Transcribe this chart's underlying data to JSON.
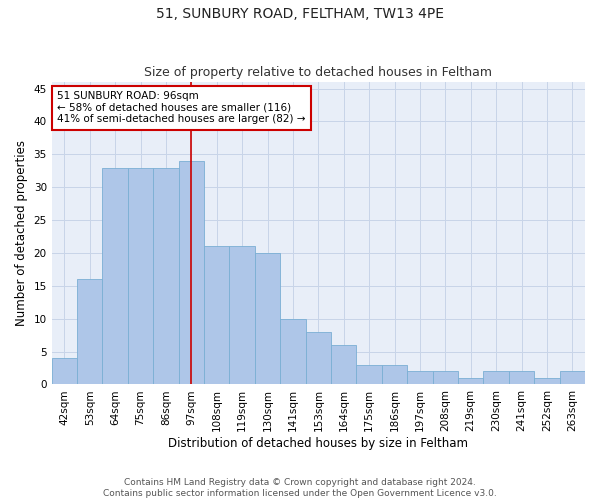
{
  "title": "51, SUNBURY ROAD, FELTHAM, TW13 4PE",
  "subtitle": "Size of property relative to detached houses in Feltham",
  "xlabel": "Distribution of detached houses by size in Feltham",
  "ylabel": "Number of detached properties",
  "categories": [
    "42sqm",
    "53sqm",
    "64sqm",
    "75sqm",
    "86sqm",
    "97sqm",
    "108sqm",
    "119sqm",
    "130sqm",
    "141sqm",
    "153sqm",
    "164sqm",
    "175sqm",
    "186sqm",
    "197sqm",
    "208sqm",
    "219sqm",
    "230sqm",
    "241sqm",
    "252sqm",
    "263sqm"
  ],
  "values": [
    4,
    16,
    33,
    33,
    33,
    34,
    21,
    21,
    20,
    10,
    8,
    6,
    3,
    3,
    2,
    2,
    1,
    2,
    2,
    1,
    2
  ],
  "bar_color": "#aec6e8",
  "bar_edge_color": "#7aafd4",
  "bar_linewidth": 0.6,
  "vline_x_index": 5,
  "vline_color": "#cc0000",
  "annotation_text": "51 SUNBURY ROAD: 96sqm\n← 58% of detached houses are smaller (116)\n41% of semi-detached houses are larger (82) →",
  "annotation_box_color": "#ffffff",
  "annotation_box_edge_color": "#cc0000",
  "ylim": [
    0,
    46
  ],
  "yticks": [
    0,
    5,
    10,
    15,
    20,
    25,
    30,
    35,
    40,
    45
  ],
  "grid_color": "#c8d4e8",
  "background_color": "#e8eef8",
  "footer_text": "Contains HM Land Registry data © Crown copyright and database right 2024.\nContains public sector information licensed under the Open Government Licence v3.0.",
  "title_fontsize": 10,
  "subtitle_fontsize": 9,
  "axis_label_fontsize": 8.5,
  "tick_fontsize": 7.5,
  "footer_fontsize": 6.5,
  "annotation_fontsize": 7.5
}
